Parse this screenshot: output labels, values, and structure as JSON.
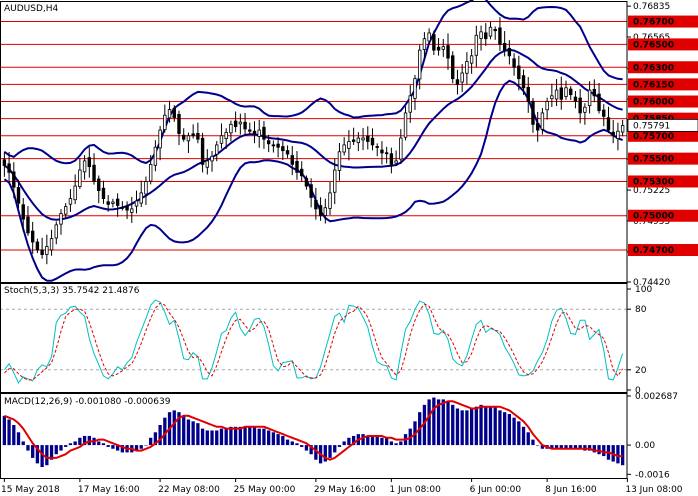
{
  "chart_data": {
    "type": "candlestick",
    "price_panel": {
      "title": "AUDUSD,H4",
      "ylim": [
        0.7442,
        0.7688
      ],
      "y_ticks": [
        "0.76835",
        "0.76565",
        "0.76290",
        "0.76020",
        "0.75750",
        "0.75495",
        "0.75225",
        "0.74955",
        "0.74685",
        "0.74420"
      ],
      "levels": [
        "0.76700",
        "0.76500",
        "0.76300",
        "0.76150",
        "0.76000",
        "0.75850",
        "0.75700",
        "0.75500",
        "0.75300",
        "0.75000",
        "0.74700"
      ],
      "current_price": "0.75791",
      "colors": {
        "levels": "#e00000",
        "bands": "#00008b",
        "candles": "#000000",
        "price_label": "#ffffff"
      },
      "close": [
        0.7544,
        0.7538,
        0.7525,
        0.7511,
        0.7497,
        0.7485,
        0.7477,
        0.747,
        0.7466,
        0.7473,
        0.748,
        0.7492,
        0.7502,
        0.7508,
        0.7515,
        0.7526,
        0.754,
        0.7548,
        0.7543,
        0.753,
        0.7522,
        0.7515,
        0.751,
        0.7512,
        0.7509,
        0.7507,
        0.7505,
        0.7506,
        0.7513,
        0.752,
        0.753,
        0.7545,
        0.756,
        0.7575,
        0.7588,
        0.7593,
        0.7586,
        0.7572,
        0.7567,
        0.757,
        0.757,
        0.7567,
        0.7545,
        0.7548,
        0.7552,
        0.7562,
        0.757,
        0.7573,
        0.758,
        0.7578,
        0.7582,
        0.7576,
        0.7574,
        0.7572,
        0.7575,
        0.7567,
        0.7563,
        0.7562,
        0.756,
        0.7557,
        0.7554,
        0.7545,
        0.7538,
        0.7535,
        0.7526,
        0.7516,
        0.7506,
        0.75,
        0.7507,
        0.752,
        0.754,
        0.7556,
        0.7562,
        0.7565,
        0.7565,
        0.7568,
        0.7568,
        0.7565,
        0.7562,
        0.756,
        0.7555,
        0.7555,
        0.7545,
        0.7548,
        0.7568,
        0.759,
        0.7605,
        0.762,
        0.7645,
        0.7655,
        0.766,
        0.7645,
        0.7645,
        0.7648,
        0.7638,
        0.762,
        0.7615,
        0.7625,
        0.7635,
        0.764,
        0.7658,
        0.7661,
        0.7655,
        0.7665,
        0.7662,
        0.765,
        0.7645,
        0.764,
        0.763,
        0.762,
        0.7612,
        0.76,
        0.758,
        0.7575,
        0.759,
        0.76,
        0.7605,
        0.761,
        0.7602,
        0.7612,
        0.7606,
        0.76,
        0.759,
        0.7595,
        0.761,
        0.7605,
        0.7592,
        0.7587,
        0.7575,
        0.757,
        0.7574,
        0.7579
      ]
    },
    "stoch_panel": {
      "label": "Stoch(5,3,3) 35.7542 21.4876",
      "ylim": [
        0,
        100
      ],
      "y_ticks": [
        "100",
        "80",
        "20",
        "0"
      ],
      "levels": [
        80,
        20
      ],
      "colors": {
        "main": "#00c0c0",
        "signal": "#e00000"
      },
      "main": [
        20,
        26,
        17,
        7,
        13,
        11,
        9,
        20,
        25,
        23,
        33,
        67,
        74,
        76,
        82,
        83,
        77,
        73,
        51,
        36,
        25,
        14,
        11,
        16,
        23,
        20,
        27,
        32,
        47,
        59,
        71,
        84,
        89,
        87,
        77,
        65,
        69,
        51,
        31,
        30,
        37,
        33,
        11,
        11,
        22,
        38,
        56,
        59,
        71,
        77,
        61,
        54,
        60,
        70,
        71,
        63,
        45,
        24,
        19,
        27,
        28,
        29,
        12,
        12,
        14,
        11,
        12,
        23,
        40,
        56,
        73,
        76,
        67,
        84,
        83,
        81,
        72,
        62,
        43,
        28,
        25,
        24,
        12,
        10,
        36,
        60,
        68,
        80,
        88,
        86,
        75,
        56,
        55,
        59,
        50,
        31,
        26,
        24,
        34,
        50,
        65,
        69,
        57,
        61,
        59,
        55,
        43,
        35,
        26,
        15,
        14,
        15,
        19,
        29,
        37,
        50,
        68,
        79,
        81,
        71,
        56,
        55,
        69,
        69,
        50,
        55,
        60,
        39,
        11,
        10,
        22,
        36
      ],
      "signal": [
        17,
        21,
        21,
        16,
        12,
        10,
        10,
        14,
        18,
        22,
        27,
        41,
        58,
        73,
        77,
        80,
        80,
        78,
        67,
        53,
        38,
        25,
        16,
        14,
        16,
        19,
        23,
        26,
        35,
        46,
        59,
        71,
        81,
        86,
        84,
        76,
        70,
        62,
        50,
        38,
        32,
        33,
        27,
        18,
        14,
        24,
        38,
        51,
        62,
        69,
        70,
        64,
        58,
        61,
        67,
        68,
        60,
        44,
        29,
        23,
        24,
        28,
        23,
        18,
        13,
        12,
        12,
        15,
        25,
        40,
        56,
        68,
        72,
        76,
        78,
        83,
        79,
        72,
        59,
        44,
        32,
        26,
        20,
        15,
        19,
        35,
        55,
        69,
        79,
        85,
        83,
        72,
        62,
        57,
        55,
        47,
        36,
        27,
        28,
        36,
        50,
        61,
        64,
        62,
        59,
        58,
        52,
        44,
        35,
        25,
        18,
        15,
        16,
        21,
        28,
        39,
        52,
        66,
        76,
        77,
        69,
        61,
        60,
        64,
        63,
        58,
        55,
        51,
        37,
        20,
        14,
        21
      ]
    },
    "macd_panel": {
      "label": "MACD(12,26,9) -0.001080 -0.000639",
      "ylim": [
        -0.0018,
        0.00285
      ],
      "y_ticks": [
        "0.002687",
        "0.00",
        "-0.0016"
      ],
      "colors": {
        "histogram": "#00008b",
        "signal": "#e00000"
      },
      "histogram": [
        0.0016,
        0.0014,
        0.0011,
        0.0007,
        0.0002,
        -0.0003,
        -0.0007,
        -0.001,
        -0.0012,
        -0.0011,
        -0.0008,
        -0.0005,
        -0.0003,
        -0.0001,
        0.0001,
        0.0002,
        0.0004,
        0.0005,
        0.0005,
        0.0004,
        0.0002,
        0.0001,
        -0.0001,
        -0.0002,
        -0.0003,
        -0.0004,
        -0.0004,
        -0.0004,
        -0.0003,
        -0.0002,
        0,
        0.0004,
        0.0007,
        0.0011,
        0.0015,
        0.0018,
        0.0019,
        0.0018,
        0.0016,
        0.0014,
        0.0013,
        0.0012,
        0.0009,
        0.0008,
        0.0008,
        0.0008,
        0.0009,
        0.0009,
        0.001,
        0.001,
        0.001,
        0.001,
        0.001,
        0.001,
        0.0009,
        0.0009,
        0.0008,
        0.0007,
        0.0006,
        0.0005,
        0.0003,
        0.0002,
        0.0001,
        -0.0001,
        -0.0003,
        -0.0005,
        -0.0008,
        -0.001,
        -0.0009,
        -0.0007,
        -0.0004,
        -0.0001,
        0.0002,
        0.0004,
        0.0005,
        0.0006,
        0.0006,
        0.0005,
        0.0005,
        0.0005,
        0.0004,
        0.0004,
        0.0002,
        0.0001,
        0.0002,
        0.0006,
        0.0009,
        0.0013,
        0.0018,
        0.0022,
        0.0025,
        0.0026,
        0.0025,
        0.0025,
        0.0024,
        0.0022,
        0.002,
        0.0019,
        0.0019,
        0.002,
        0.0021,
        0.0022,
        0.0021,
        0.0021,
        0.0021,
        0.0019,
        0.0018,
        0.0017,
        0.0015,
        0.0013,
        0.001,
        0.0007,
        0.0003,
        0,
        -0.0002,
        -0.0002,
        -0.0002,
        -0.0002,
        -0.0002,
        -0.0002,
        -0.0002,
        -0.0002,
        -0.0002,
        -0.0003,
        -0.0003,
        -0.0004,
        -0.0005,
        -0.0006,
        -0.0008,
        -0.0009,
        -0.001,
        -0.0011
      ],
      "signal": [
        0.0016,
        0.0015,
        0.0014,
        0.0012,
        0.0009,
        0.0005,
        0.0001,
        -0.0002,
        -0.0005,
        -0.0007,
        -0.0007,
        -0.0007,
        -0.0006,
        -0.0005,
        -0.0003,
        -0.0002,
        -0.0001,
        0.0001,
        0.0002,
        0.0002,
        0.0003,
        0.0003,
        0.0002,
        0.0001,
        0,
        -0.0001,
        -0.0002,
        -0.0002,
        -0.0003,
        -0.0003,
        -0.0002,
        -0.0001,
        0.0001,
        0.0003,
        0.0006,
        0.0009,
        0.0012,
        0.0015,
        0.0016,
        0.0016,
        0.0015,
        0.0014,
        0.0013,
        0.0012,
        0.0011,
        0.001,
        0.001,
        0.0009,
        0.0009,
        0.0009,
        0.0009,
        0.001,
        0.001,
        0.001,
        0.001,
        0.001,
        0.0009,
        0.0008,
        0.0007,
        0.0006,
        0.0005,
        0.0004,
        0.0003,
        0.0002,
        0.0001,
        -0.0001,
        -0.0003,
        -0.0005,
        -0.0007,
        -0.0008,
        -0.0007,
        -0.0005,
        -0.0003,
        -0.0001,
        0.0001,
        0.0003,
        0.0004,
        0.0005,
        0.0005,
        0.0005,
        0.0005,
        0.0004,
        0.0004,
        0.0003,
        0.0003,
        0.0003,
        0.0004,
        0.0006,
        0.0009,
        0.0012,
        0.0016,
        0.002,
        0.0022,
        0.0023,
        0.0024,
        0.0024,
        0.0023,
        0.0022,
        0.0021,
        0.002,
        0.002,
        0.0021,
        0.0021,
        0.0021,
        0.0021,
        0.0021,
        0.002,
        0.0019,
        0.0017,
        0.0015,
        0.0013,
        0.001,
        0.0006,
        0.0003,
        0,
        -0.0001,
        -0.0002,
        -0.0002,
        -0.0002,
        -0.0002,
        -0.0002,
        -0.0002,
        -0.0002,
        -0.0002,
        -0.0002,
        -0.0003,
        -0.0003,
        -0.0004,
        -0.0004,
        -0.0005,
        -0.0006,
        -0.0006
      ]
    },
    "x_labels": [
      {
        "text": "15 May 2018",
        "index": 0
      },
      {
        "text": "17 May 16:00",
        "index": 16
      },
      {
        "text": "22 May 08:00",
        "index": 33
      },
      {
        "text": "25 May 00:00",
        "index": 49
      },
      {
        "text": "29 May 16:00",
        "index": 66
      },
      {
        "text": "1 Jun 08:00",
        "index": 82
      },
      {
        "text": "6 Jun 00:00",
        "index": 99
      },
      {
        "text": "8 Jun 16:00",
        "index": 115
      },
      {
        "text": "13 Jun 08:00",
        "index": 132
      }
    ]
  }
}
